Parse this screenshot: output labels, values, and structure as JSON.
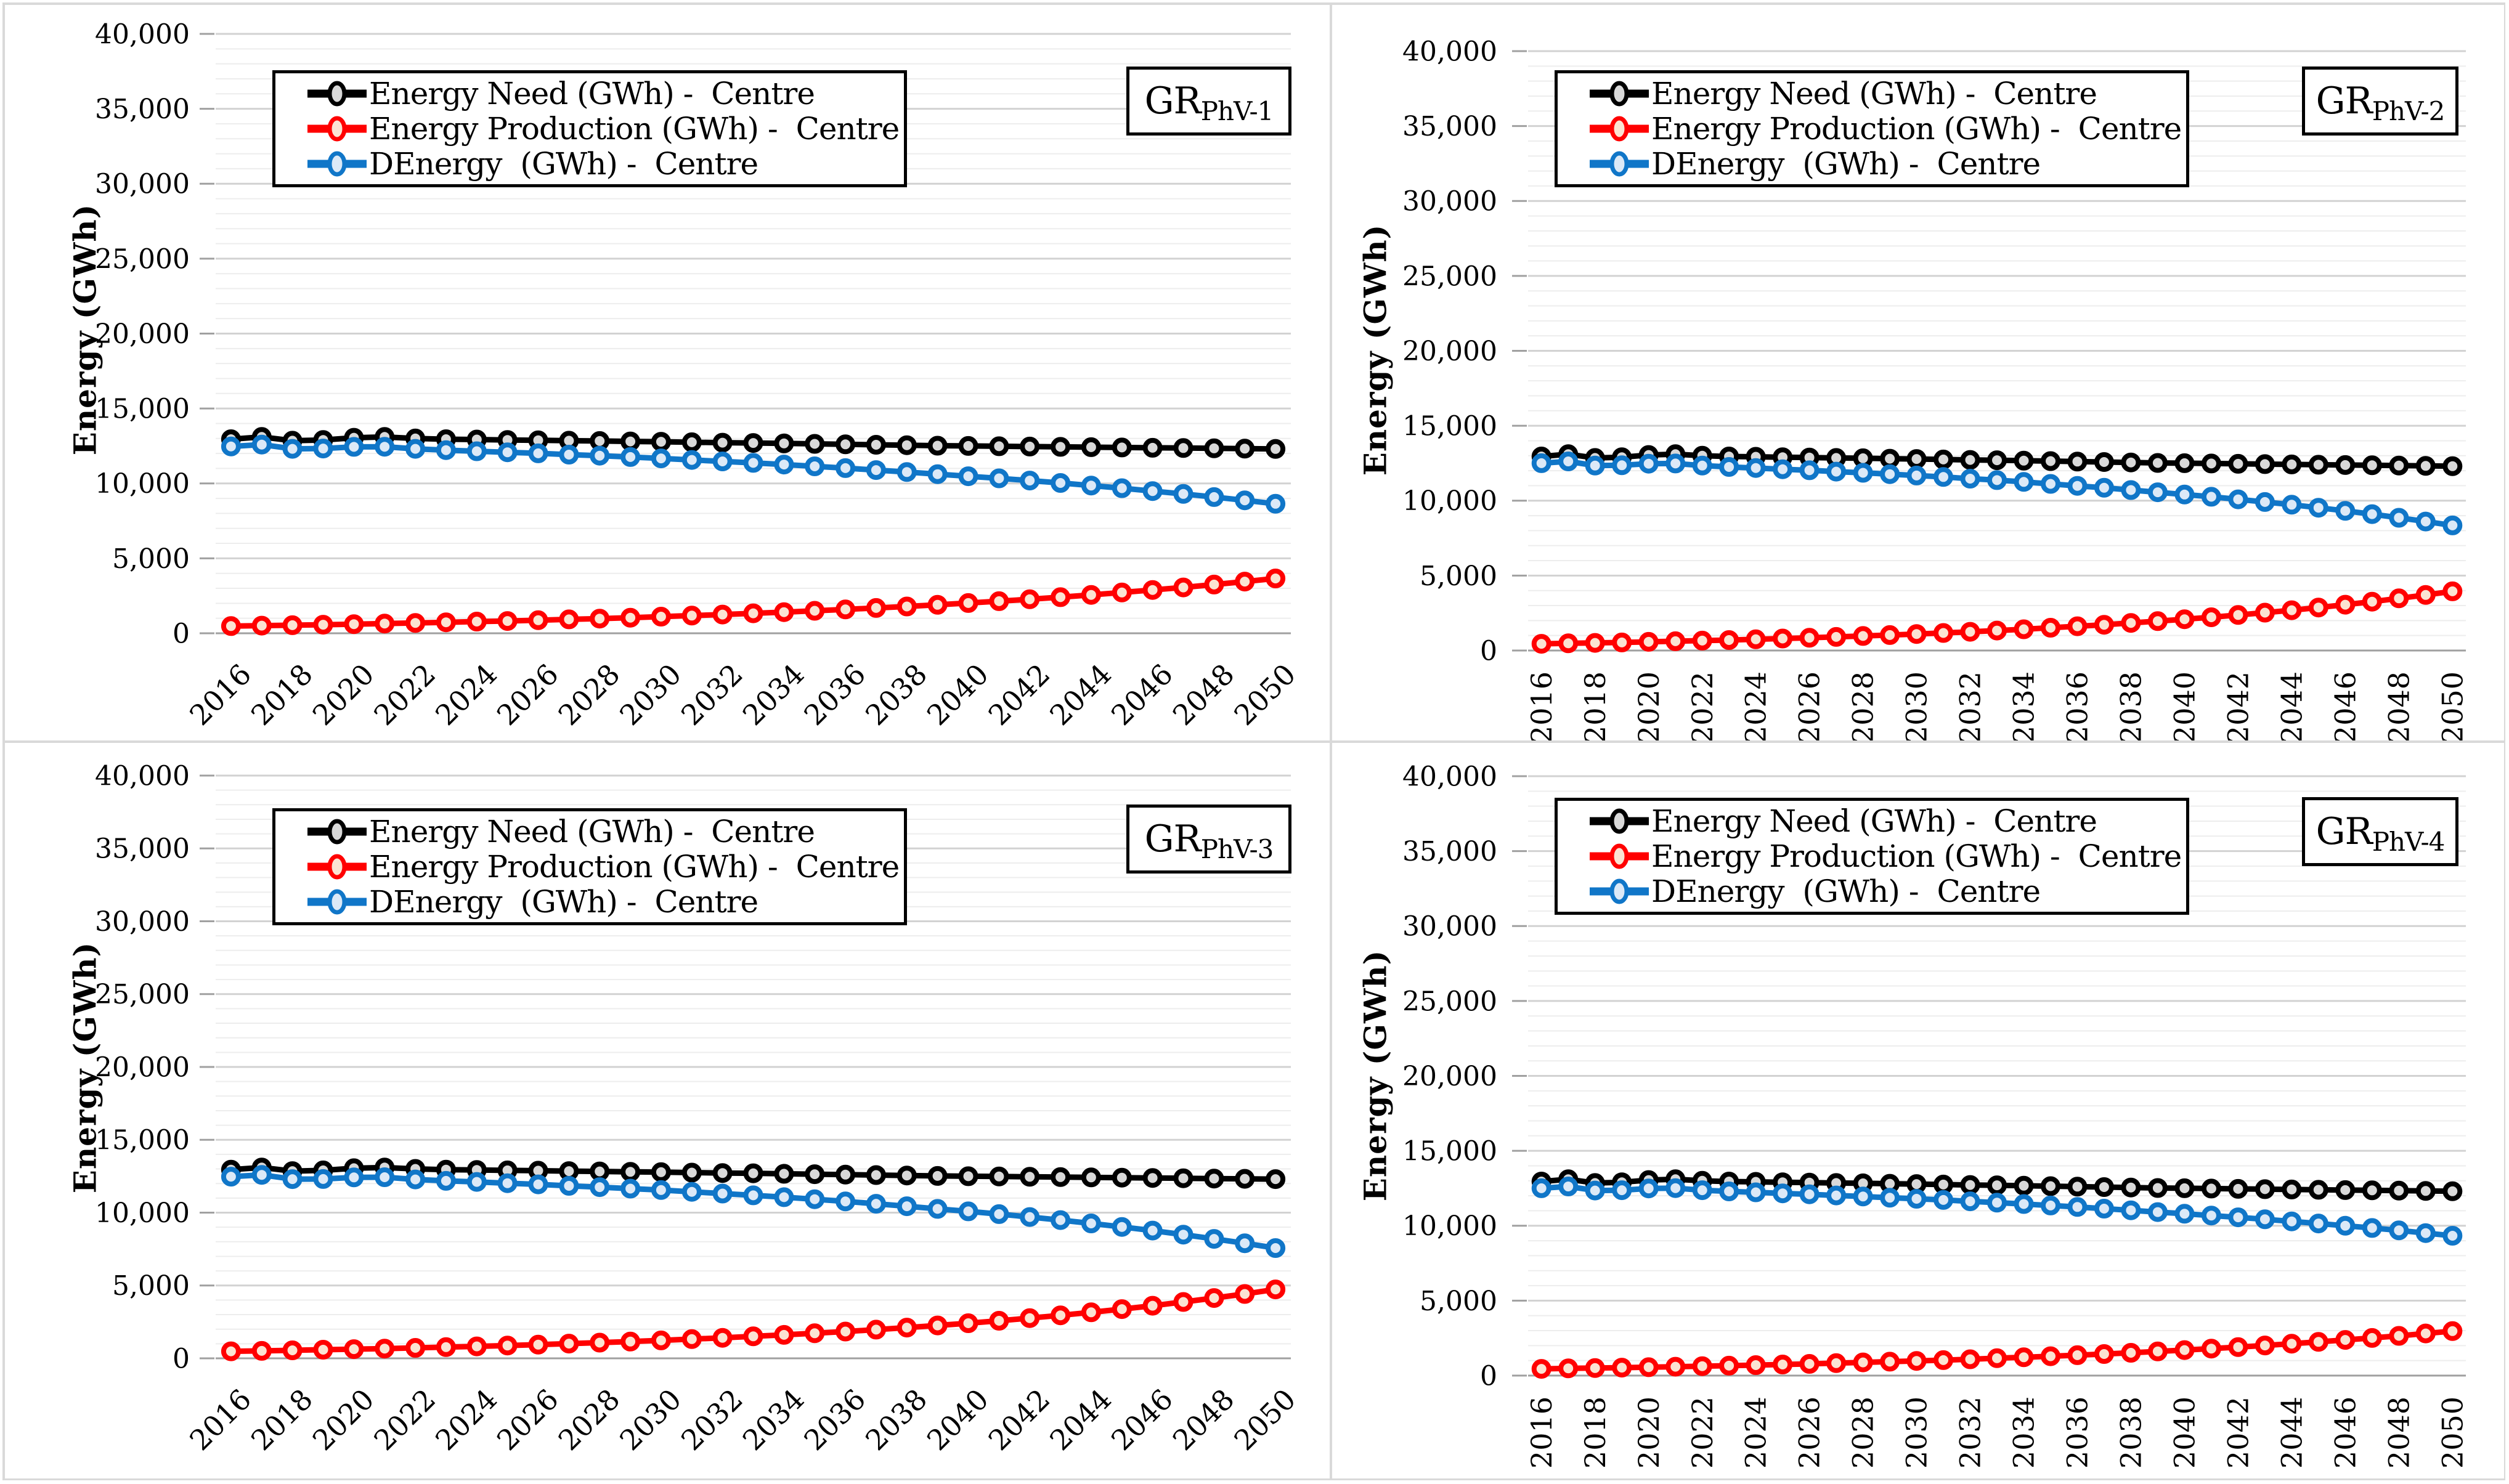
{
  "figure": {
    "y_axis_title": "Energy (GWh)",
    "y_tick_labels": [
      "0",
      "5,000",
      "10,000",
      "15,000",
      "20,000",
      "25,000",
      "30,000",
      "35,000",
      "40,000"
    ],
    "x_tick_labels": [
      "2016",
      "2018",
      "2020",
      "2022",
      "2024",
      "2026",
      "2028",
      "2030",
      "2032",
      "2034",
      "2036",
      "2038",
      "2040",
      "2042",
      "2044",
      "2046",
      "2048",
      "2050"
    ],
    "colors": {
      "need": "#000000",
      "need_marker_fill": "#d9d9d9",
      "production": "#ff0000",
      "production_marker_fill": "#fbe3d2",
      "denergy": "#1076c8",
      "denergy_marker_fill": "#dce9f7",
      "grid_minor": "#ededed",
      "grid_major": "#d2d2d2",
      "axis_zero": "#a0a0a0",
      "panel_border": "#d9d9d9"
    }
  },
  "panels": [
    {
      "tag_base": "GR",
      "tag_sub": "PhV-1"
    },
    {
      "tag_base": "GR",
      "tag_sub": "PhV-2"
    },
    {
      "tag_base": "GR",
      "tag_sub": "PhV-3"
    },
    {
      "tag_base": "GR",
      "tag_sub": "PhV-4"
    }
  ],
  "chart_data": [
    {
      "type": "line",
      "title": "GR PhV-1",
      "ylabel": "Energy (GWh)",
      "ylim": [
        0,
        40000
      ],
      "ytick_major": 5000,
      "ytick_minor": 1000,
      "x_label_rotation": 45,
      "legend_position": "top-left-inside",
      "grid": "horizontal-only",
      "x_years": [
        2016,
        2017,
        2018,
        2019,
        2020,
        2021,
        2022,
        2023,
        2024,
        2025,
        2026,
        2027,
        2028,
        2029,
        2030,
        2031,
        2032,
        2033,
        2034,
        2035,
        2036,
        2037,
        2038,
        2039,
        2040,
        2041,
        2042,
        2043,
        2044,
        2045,
        2046,
        2047,
        2048,
        2049,
        2050
      ],
      "series": [
        {
          "name": "Energy Need (GWh) -  Centre",
          "color": "#000000",
          "marker_fill": "#d9d9d9",
          "values": [
            12950,
            13100,
            12850,
            12900,
            13050,
            13100,
            13000,
            12950,
            12930,
            12900,
            12880,
            12850,
            12830,
            12800,
            12780,
            12750,
            12720,
            12700,
            12670,
            12640,
            12610,
            12580,
            12550,
            12520,
            12500,
            12480,
            12460,
            12440,
            12420,
            12400,
            12380,
            12360,
            12340,
            12320,
            12300
          ]
        },
        {
          "name": "Energy Production (GWh) -  Centre",
          "color": "#ff0000",
          "marker_fill": "#fbe3d2",
          "values": [
            480,
            510,
            540,
            570,
            610,
            650,
            690,
            730,
            780,
            820,
            870,
            930,
            980,
            1040,
            1110,
            1180,
            1250,
            1330,
            1410,
            1500,
            1590,
            1690,
            1790,
            1900,
            2020,
            2140,
            2270,
            2410,
            2560,
            2720,
            2890,
            3060,
            3250,
            3450,
            3660
          ]
        },
        {
          "name": "DEnergy  (GWh) -  Centre",
          "color": "#1076c8",
          "marker_fill": "#dce9f7",
          "values": [
            12470,
            12590,
            12310,
            12330,
            12440,
            12450,
            12310,
            12220,
            12150,
            12080,
            12010,
            11920,
            11850,
            11760,
            11670,
            11570,
            11470,
            11370,
            11260,
            11140,
            11020,
            10890,
            10760,
            10620,
            10480,
            10340,
            10190,
            10030,
            9860,
            9680,
            9490,
            9300,
            9090,
            8870,
            8640
          ]
        }
      ]
    },
    {
      "type": "line",
      "title": "GR PhV-2",
      "ylabel": "Energy (GWh)",
      "ylim": [
        0,
        40000
      ],
      "ytick_major": 5000,
      "ytick_minor": 1000,
      "x_label_rotation": 90,
      "legend_position": "top-left-inside",
      "grid": "horizontal-only",
      "x_years": [
        2016,
        2017,
        2018,
        2019,
        2020,
        2021,
        2022,
        2023,
        2024,
        2025,
        2026,
        2027,
        2028,
        2029,
        2030,
        2031,
        2032,
        2033,
        2034,
        2035,
        2036,
        2037,
        2038,
        2039,
        2040,
        2041,
        2042,
        2043,
        2044,
        2045,
        2046,
        2047,
        2048,
        2049,
        2050
      ],
      "series": [
        {
          "name": "Energy Need (GWh) -  Centre",
          "color": "#000000",
          "marker_fill": "#d9d9d9",
          "values": [
            12950,
            13100,
            12850,
            12900,
            13050,
            13100,
            13000,
            12950,
            12930,
            12900,
            12880,
            12850,
            12830,
            12800,
            12780,
            12750,
            12720,
            12700,
            12670,
            12640,
            12610,
            12580,
            12550,
            12520,
            12500,
            12480,
            12460,
            12440,
            12420,
            12400,
            12380,
            12360,
            12340,
            12320,
            12300
          ]
        },
        {
          "name": "Energy Production (GWh) -  Centre",
          "color": "#ff0000",
          "marker_fill": "#fbe3d2",
          "values": [
            450,
            480,
            510,
            540,
            580,
            620,
            660,
            700,
            750,
            800,
            850,
            910,
            970,
            1030,
            1100,
            1170,
            1250,
            1330,
            1420,
            1520,
            1620,
            1720,
            1840,
            1960,
            2090,
            2220,
            2370,
            2530,
            2690,
            2870,
            3060,
            3260,
            3480,
            3710,
            3950
          ]
        },
        {
          "name": "DEnergy  (GWh) -  Centre",
          "color": "#1076c8",
          "marker_fill": "#dce9f7",
          "values": [
            12500,
            12620,
            12340,
            12360,
            12470,
            12480,
            12340,
            12250,
            12180,
            12100,
            12030,
            11940,
            11860,
            11770,
            11680,
            11580,
            11470,
            11370,
            11250,
            11120,
            10990,
            10860,
            10710,
            10560,
            10410,
            10260,
            10090,
            9910,
            9730,
            9530,
            9320,
            9100,
            8860,
            8610,
            8350
          ]
        }
      ]
    },
    {
      "type": "line",
      "title": "GR PhV-3",
      "ylabel": "Energy (GWh)",
      "ylim": [
        0,
        40000
      ],
      "ytick_major": 5000,
      "ytick_minor": 1000,
      "x_label_rotation": 45,
      "legend_position": "top-left-inside",
      "grid": "horizontal-only",
      "x_years": [
        2016,
        2017,
        2018,
        2019,
        2020,
        2021,
        2022,
        2023,
        2024,
        2025,
        2026,
        2027,
        2028,
        2029,
        2030,
        2031,
        2032,
        2033,
        2034,
        2035,
        2036,
        2037,
        2038,
        2039,
        2040,
        2041,
        2042,
        2043,
        2044,
        2045,
        2046,
        2047,
        2048,
        2049,
        2050
      ],
      "series": [
        {
          "name": "Energy Need (GWh) -  Centre",
          "color": "#000000",
          "marker_fill": "#d9d9d9",
          "values": [
            12950,
            13100,
            12850,
            12900,
            13050,
            13100,
            13000,
            12950,
            12930,
            12900,
            12880,
            12850,
            12830,
            12800,
            12780,
            12750,
            12720,
            12700,
            12670,
            12640,
            12610,
            12580,
            12550,
            12520,
            12500,
            12480,
            12460,
            12440,
            12420,
            12400,
            12380,
            12360,
            12340,
            12320,
            12300
          ]
        },
        {
          "name": "Energy Production (GWh) -  Centre",
          "color": "#ff0000",
          "marker_fill": "#fbe3d2",
          "values": [
            480,
            510,
            550,
            590,
            630,
            670,
            720,
            770,
            820,
            880,
            940,
            1010,
            1080,
            1150,
            1230,
            1320,
            1410,
            1510,
            1610,
            1720,
            1840,
            1970,
            2110,
            2260,
            2410,
            2580,
            2760,
            2950,
            3160,
            3380,
            3610,
            3870,
            4140,
            4420,
            4730
          ]
        },
        {
          "name": "DEnergy  (GWh) -  Centre",
          "color": "#1076c8",
          "marker_fill": "#dce9f7",
          "values": [
            12470,
            12590,
            12300,
            12310,
            12420,
            12430,
            12280,
            12180,
            12110,
            12020,
            11940,
            11840,
            11750,
            11650,
            11550,
            11430,
            11310,
            11190,
            11060,
            10920,
            10770,
            10610,
            10440,
            10260,
            10090,
            9900,
            9700,
            9490,
            9260,
            9020,
            8770,
            8490,
            8200,
            7900,
            7570
          ]
        }
      ]
    },
    {
      "type": "line",
      "title": "GR PhV-4",
      "ylabel": "Energy (GWh)",
      "ylim": [
        0,
        40000
      ],
      "ytick_major": 5000,
      "ytick_minor": 1000,
      "x_label_rotation": 90,
      "legend_position": "top-left-inside",
      "grid": "horizontal-only",
      "x_years": [
        2016,
        2017,
        2018,
        2019,
        2020,
        2021,
        2022,
        2023,
        2024,
        2025,
        2026,
        2027,
        2028,
        2029,
        2030,
        2031,
        2032,
        2033,
        2034,
        2035,
        2036,
        2037,
        2038,
        2039,
        2040,
        2041,
        2042,
        2043,
        2044,
        2045,
        2046,
        2047,
        2048,
        2049,
        2050
      ],
      "series": [
        {
          "name": "Energy Need (GWh) -  Centre",
          "color": "#000000",
          "marker_fill": "#d9d9d9",
          "values": [
            12950,
            13100,
            12850,
            12900,
            13050,
            13100,
            13000,
            12950,
            12930,
            12900,
            12880,
            12850,
            12830,
            12800,
            12780,
            12750,
            12720,
            12700,
            12670,
            12640,
            12610,
            12580,
            12550,
            12520,
            12500,
            12480,
            12460,
            12440,
            12420,
            12400,
            12380,
            12360,
            12340,
            12320,
            12300
          ]
        },
        {
          "name": "Energy Production (GWh) -  Centre",
          "color": "#ff0000",
          "marker_fill": "#fbe3d2",
          "values": [
            450,
            480,
            500,
            530,
            560,
            590,
            630,
            660,
            700,
            740,
            780,
            830,
            880,
            930,
            980,
            1030,
            1090,
            1160,
            1220,
            1290,
            1360,
            1440,
            1520,
            1610,
            1700,
            1800,
            1900,
            2010,
            2130,
            2250,
            2380,
            2510,
            2650,
            2810,
            2970
          ]
        },
        {
          "name": "DEnergy  (GWh) -  Centre",
          "color": "#1076c8",
          "marker_fill": "#dce9f7",
          "values": [
            12500,
            12620,
            12350,
            12370,
            12490,
            12510,
            12370,
            12290,
            12230,
            12160,
            12100,
            12020,
            11950,
            11870,
            11800,
            11720,
            11630,
            11540,
            11450,
            11350,
            11250,
            11140,
            11030,
            10910,
            10800,
            10680,
            10560,
            10430,
            10290,
            10150,
            10000,
            9850,
            9690,
            9510,
            9330
          ]
        }
      ]
    }
  ]
}
